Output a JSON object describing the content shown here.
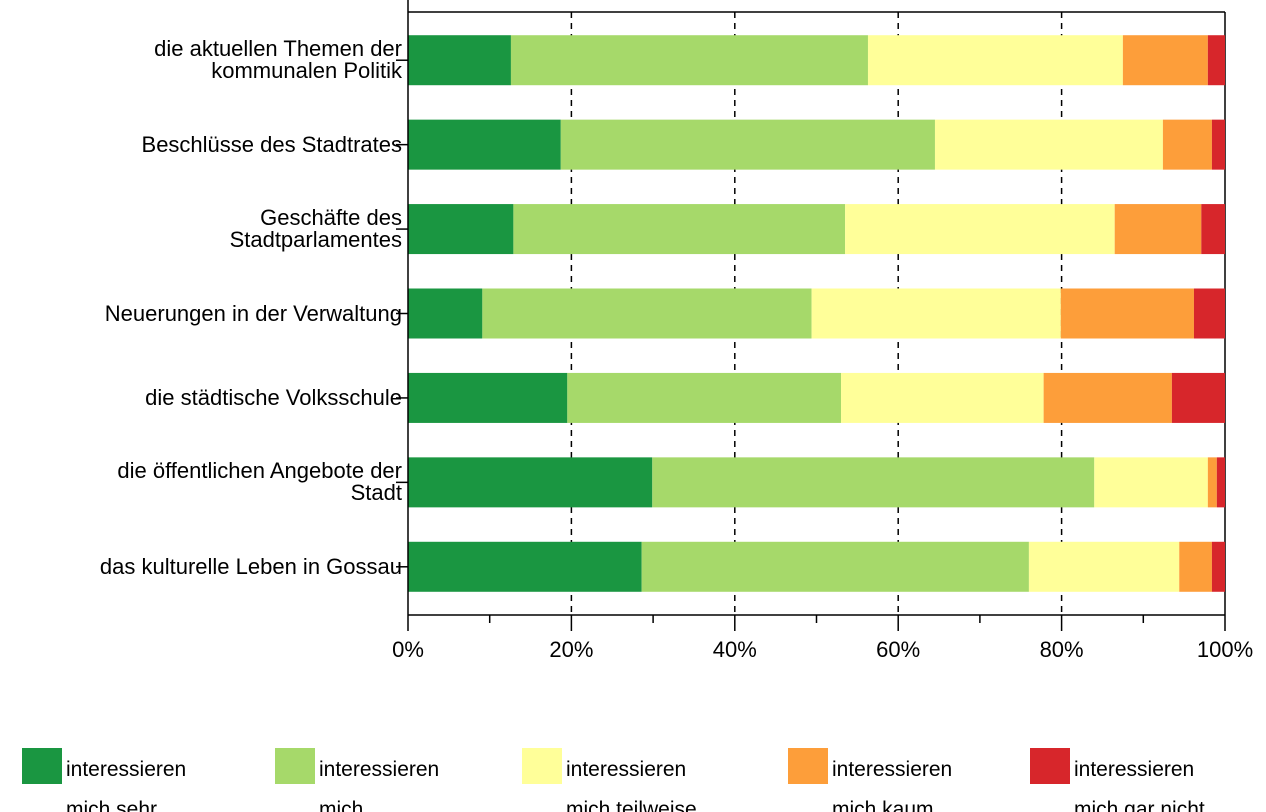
{
  "chart_data": {
    "type": "stacked_bar_horizontal",
    "categories": [
      "die aktuellen Themen der\nkommunalen Politik",
      "Beschlüsse des Stadtrates",
      "Geschäfte des\nStadtparlamentes",
      "Neuerungen in der Verwaltung",
      "die städtische Volksschule",
      "die öffentlichen Angebote der\nStadt",
      "das kulturelle Leben in Gossau"
    ],
    "series": [
      {
        "name": "interessieren\nmich sehr",
        "color": "#1a9641",
        "values": [
          12.6,
          18.7,
          12.9,
          9.1,
          19.5,
          29.9,
          28.6
        ]
      },
      {
        "name": "interessieren\nmich",
        "color": "#a6d96a",
        "values": [
          43.7,
          45.8,
          40.6,
          40.3,
          33.5,
          54.1,
          47.4
        ]
      },
      {
        "name": "interessieren\nmich teilweise",
        "color": "#ffff99",
        "values": [
          31.2,
          27.9,
          33.0,
          30.5,
          24.8,
          13.9,
          18.4
        ]
      },
      {
        "name": "interessieren\nmich kaum",
        "color": "#fd9e3a",
        "values": [
          10.4,
          6.0,
          10.6,
          16.3,
          15.7,
          1.1,
          4.0
        ]
      },
      {
        "name": "interessieren\nmich gar nicht",
        "color": "#d7262b",
        "values": [
          2.1,
          1.6,
          2.9,
          3.8,
          6.5,
          1.0,
          1.6
        ]
      }
    ],
    "xlim": [
      0,
      100
    ],
    "xticks": [
      {
        "value": 0,
        "label": "0%"
      },
      {
        "value": 20,
        "label": "20%"
      },
      {
        "value": 40,
        "label": "40%"
      },
      {
        "value": 60,
        "label": "60%"
      },
      {
        "value": 80,
        "label": "80%"
      },
      {
        "value": 100,
        "label": "100%"
      }
    ],
    "grid": true,
    "legend": "bottom"
  }
}
